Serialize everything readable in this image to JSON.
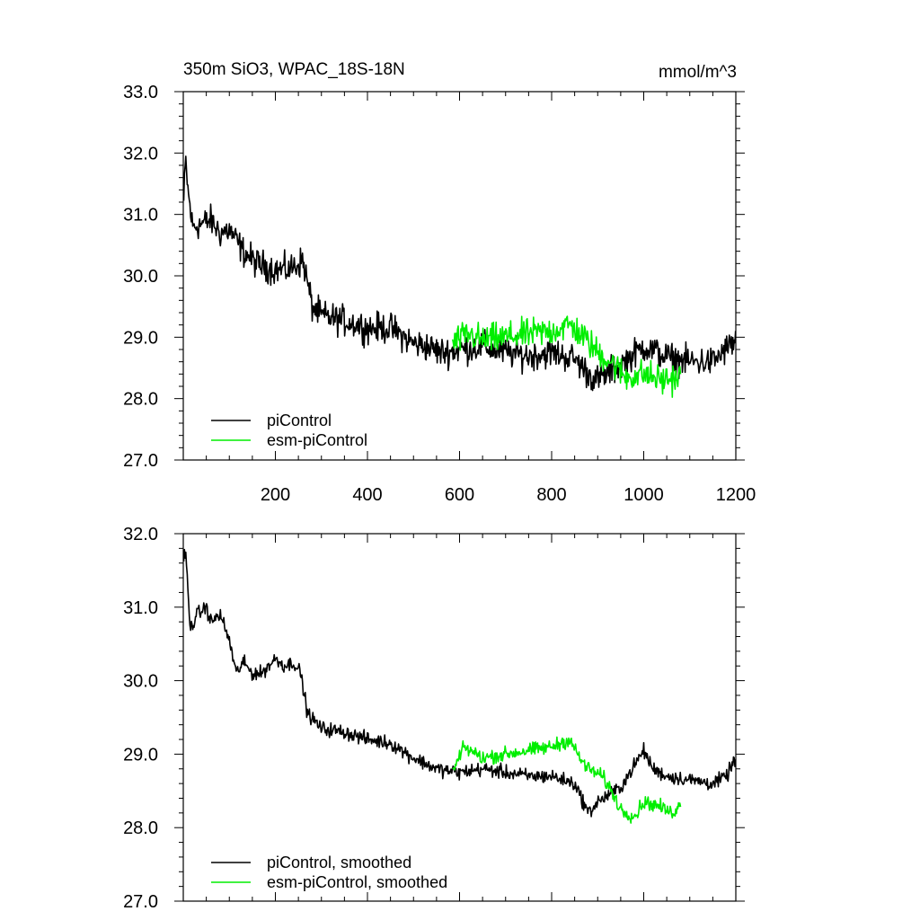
{
  "chart_data": [
    {
      "type": "line",
      "title_left": "350m SiO3, WPAC_18S-18N",
      "title_right": "mmol/m^3",
      "xlim": [
        0,
        1200
      ],
      "ylim": [
        27.0,
        33.0
      ],
      "x_ticks": [
        200,
        400,
        600,
        800,
        1000,
        1200
      ],
      "x_tick_labels": [
        "200",
        "400",
        "600",
        "800",
        "1000",
        "1200"
      ],
      "y_ticks": [
        27.0,
        28.0,
        29.0,
        30.0,
        31.0,
        32.0,
        33.0
      ],
      "y_tick_labels": [
        "27.0",
        "28.0",
        "29.0",
        "30.0",
        "31.0",
        "32.0",
        "33.0"
      ],
      "legend": [
        "piControl",
        "esm-piControl"
      ],
      "legend_location": "bottom-left",
      "noise": 0.38,
      "series": [
        {
          "name": "piControl",
          "color": "#000000",
          "x": [
            1,
            5,
            10,
            20,
            40,
            60,
            80,
            100,
            130,
            160,
            200,
            230,
            260,
            280,
            300,
            330,
            360,
            400,
            450,
            500,
            530,
            560,
            600,
            650,
            700,
            750,
            800,
            850,
            880,
            900,
            950,
            1000,
            1030,
            1060,
            1100,
            1150,
            1200
          ],
          "values": [
            31.2,
            31.9,
            31.4,
            30.8,
            30.85,
            30.9,
            30.7,
            30.75,
            30.4,
            30.2,
            30.1,
            30.1,
            30.25,
            29.5,
            29.35,
            29.3,
            29.25,
            29.15,
            29.15,
            28.9,
            28.85,
            28.75,
            28.8,
            28.85,
            28.75,
            28.7,
            28.75,
            28.65,
            28.4,
            28.3,
            28.55,
            28.85,
            28.75,
            28.65,
            28.6,
            28.6,
            28.95
          ]
        },
        {
          "name": "esm-piControl",
          "color": "#00ee00",
          "x": [
            585,
            620,
            650,
            700,
            750,
            800,
            840,
            870,
            900,
            930,
            960,
            1000,
            1040,
            1080
          ],
          "values": [
            28.9,
            29.05,
            28.95,
            29.0,
            29.05,
            29.1,
            29.2,
            29.0,
            28.75,
            28.6,
            28.35,
            28.4,
            28.3,
            28.35
          ]
        }
      ]
    },
    {
      "type": "line",
      "xlim": [
        0,
        1200
      ],
      "ylim": [
        27.0,
        32.0
      ],
      "x_ticks": [
        200,
        400,
        600,
        800,
        1000,
        1200
      ],
      "y_ticks": [
        27.0,
        28.0,
        29.0,
        30.0,
        31.0,
        32.0
      ],
      "y_tick_labels": [
        "27.0",
        "28.0",
        "29.0",
        "30.0",
        "31.0",
        "32.0"
      ],
      "legend": [
        "piControl, smoothed",
        "esm-piControl, smoothed"
      ],
      "legend_location": "bottom-left",
      "noise": 0.15,
      "series": [
        {
          "name": "piControl, smoothed",
          "color": "#000000",
          "x": [
            1,
            5,
            15,
            30,
            50,
            60,
            80,
            100,
            115,
            130,
            150,
            170,
            200,
            220,
            240,
            255,
            270,
            300,
            350,
            400,
            450,
            500,
            550,
            600,
            650,
            700,
            750,
            800,
            850,
            880,
            900,
            950,
            1000,
            1020,
            1050,
            1100,
            1150,
            1180,
            1200
          ],
          "values": [
            31.7,
            31.75,
            30.7,
            30.9,
            31.0,
            30.8,
            30.9,
            30.55,
            30.1,
            30.25,
            30.1,
            30.1,
            30.3,
            30.2,
            30.25,
            30.1,
            29.55,
            29.35,
            29.3,
            29.2,
            29.15,
            28.95,
            28.8,
            28.75,
            28.8,
            28.75,
            28.7,
            28.7,
            28.6,
            28.2,
            28.35,
            28.55,
            29.05,
            28.8,
            28.7,
            28.65,
            28.6,
            28.7,
            28.95
          ]
        },
        {
          "name": "esm-piControl, smoothed",
          "color": "#00ee00",
          "x": [
            585,
            610,
            650,
            700,
            750,
            800,
            840,
            860,
            880,
            910,
            930,
            950,
            980,
            1000,
            1030,
            1060,
            1080
          ],
          "values": [
            28.75,
            29.1,
            28.95,
            29.0,
            29.05,
            29.1,
            29.2,
            28.95,
            28.8,
            28.7,
            28.5,
            28.25,
            28.15,
            28.35,
            28.3,
            28.2,
            28.3
          ]
        }
      ]
    }
  ]
}
